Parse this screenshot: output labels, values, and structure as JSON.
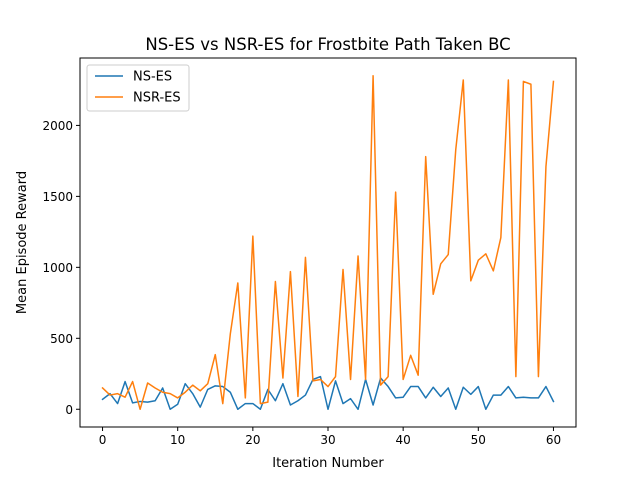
{
  "chart_data": {
    "type": "line",
    "title": "NS-ES vs NSR-ES for Frostbite Path Taken BC",
    "xlabel": "Iteration Number",
    "ylabel": "Mean Episode Reward",
    "xlim": [
      -3,
      63
    ],
    "ylim": [
      -125,
      2475
    ],
    "xticks": [
      0,
      10,
      20,
      30,
      40,
      50,
      60
    ],
    "yticks": [
      0,
      500,
      1000,
      1500,
      2000
    ],
    "legend_position": "top-left",
    "grid": false,
    "series": [
      {
        "name": "NS-ES",
        "color": "#1f77b4",
        "x": [
          0,
          1,
          2,
          3,
          4,
          5,
          6,
          7,
          8,
          9,
          10,
          11,
          12,
          13,
          14,
          15,
          16,
          17,
          18,
          19,
          20,
          21,
          22,
          23,
          24,
          25,
          26,
          27,
          28,
          29,
          30,
          31,
          32,
          33,
          34,
          35,
          36,
          37,
          38,
          39,
          40,
          41,
          42,
          43,
          44,
          45,
          46,
          47,
          48,
          49,
          50,
          51,
          52,
          53,
          54,
          55,
          56,
          57,
          58,
          59,
          60
        ],
        "values": [
          70,
          110,
          40,
          195,
          45,
          55,
          50,
          60,
          150,
          0,
          35,
          180,
          110,
          15,
          140,
          165,
          160,
          120,
          0,
          40,
          40,
          0,
          140,
          60,
          180,
          30,
          60,
          100,
          210,
          230,
          0,
          200,
          40,
          75,
          0,
          210,
          30,
          220,
          160,
          80,
          85,
          160,
          160,
          80,
          155,
          90,
          150,
          0,
          155,
          105,
          160,
          0,
          100,
          100,
          160,
          80,
          85,
          80,
          80,
          160,
          55
        ]
      },
      {
        "name": "NSR-ES",
        "color": "#ff7f0e",
        "x": [
          0,
          1,
          2,
          3,
          4,
          5,
          6,
          7,
          8,
          9,
          10,
          11,
          12,
          13,
          14,
          15,
          16,
          17,
          18,
          19,
          20,
          21,
          22,
          23,
          24,
          25,
          26,
          27,
          28,
          29,
          30,
          31,
          32,
          33,
          34,
          35,
          36,
          37,
          38,
          39,
          40,
          41,
          42,
          43,
          44,
          45,
          46,
          47,
          48,
          49,
          50,
          51,
          52,
          53,
          54,
          55,
          56,
          57,
          58,
          59,
          60
        ],
        "values": [
          150,
          100,
          110,
          85,
          195,
          0,
          185,
          150,
          120,
          110,
          80,
          120,
          170,
          130,
          180,
          385,
          40,
          530,
          890,
          80,
          1220,
          40,
          50,
          900,
          220,
          970,
          90,
          1070,
          200,
          210,
          160,
          230,
          985,
          210,
          1080,
          210,
          2350,
          170,
          230,
          1530,
          210,
          380,
          240,
          1780,
          810,
          1025,
          1090,
          1830,
          2320,
          905,
          1050,
          1095,
          975,
          1210,
          2320,
          230,
          2310,
          2290,
          230,
          1710,
          2310
        ]
      }
    ]
  }
}
